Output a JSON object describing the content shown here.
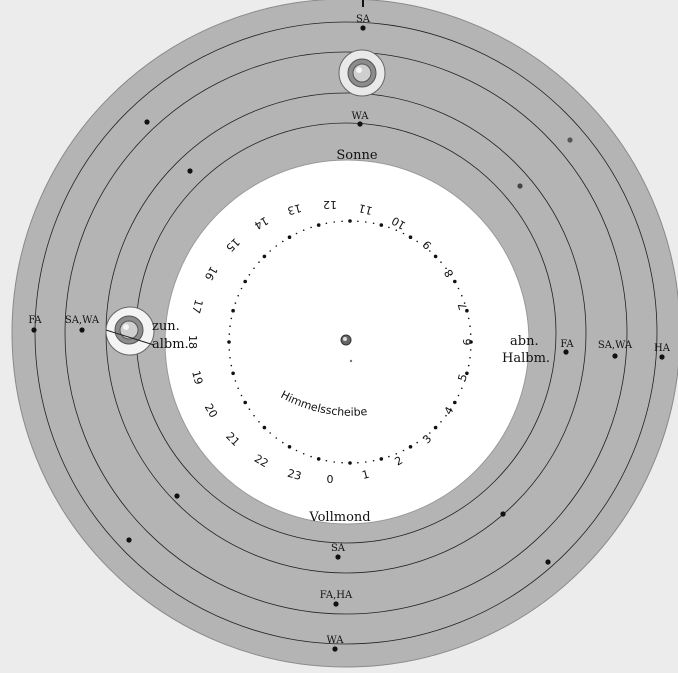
{
  "outer_ring_labels": {
    "top_sa": "SA",
    "top_wa": "WA",
    "left_fa": "FA",
    "left_sawa": "SA,WA",
    "right_fa": "FA",
    "right_sawa": "SA,WA",
    "right_ha": "HA",
    "bottom_sa": "SA",
    "bottom_faha": "FA,HA",
    "bottom_wa": "WA"
  },
  "phase_labels": {
    "sun": "Sonne",
    "full_moon": "Vollmond",
    "waxing_line1": "zun.",
    "waxing_line2": "albm.",
    "waning_line1": "abn.",
    "waning_line2": "Halbm."
  },
  "sky_disc": {
    "title": "Himmelsscheibe",
    "hours": [
      "0",
      "1",
      "2",
      "3",
      "4",
      "5",
      "6",
      "7",
      "8",
      "9",
      "10",
      "11",
      "12",
      "13",
      "14",
      "15",
      "16",
      "17",
      "18",
      "19",
      "20",
      "21",
      "22",
      "23"
    ]
  },
  "colors": {
    "background": "#ececec",
    "ring": "#b4b4b4",
    "disc": "#ffffff",
    "ink": "#111111"
  }
}
